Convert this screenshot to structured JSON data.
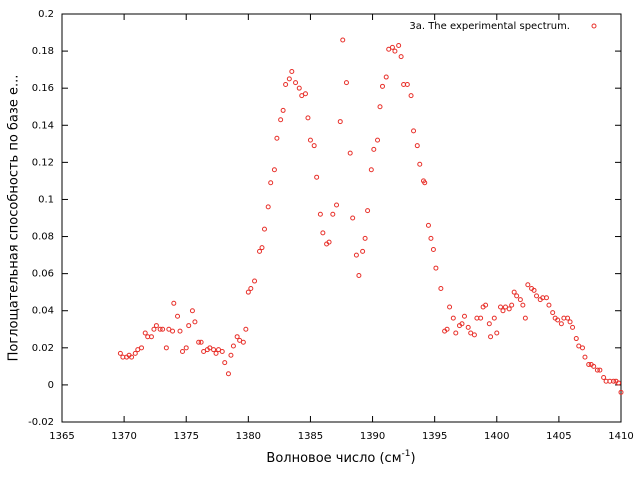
{
  "chart_data": {
    "type": "scatter",
    "xlabel": [
      "Волновое число (см",
      "-1",
      ")"
    ],
    "ylabel": "Поглощательная способность по базе e...",
    "xlim": [
      1365,
      1410
    ],
    "xticks": [
      1365,
      1370,
      1375,
      1380,
      1385,
      1390,
      1395,
      1400,
      1405,
      1410
    ],
    "ylim": [
      -0.02,
      0.2
    ],
    "yticks": [
      -0.02,
      0,
      0.02,
      0.04,
      0.06,
      0.08,
      0.1,
      0.12,
      0.14,
      0.16,
      0.18,
      0.2
    ],
    "legend": "top-right",
    "x": [
      1369.7,
      1369.9,
      1370.2,
      1370.4,
      1370.6,
      1370.9,
      1371.1,
      1371.4,
      1371.7,
      1371.9,
      1372.2,
      1372.4,
      1372.6,
      1372.9,
      1373.1,
      1373.4,
      1373.6,
      1373.9,
      1374.0,
      1374.3,
      1374.5,
      1374.7,
      1375.0,
      1375.2,
      1375.5,
      1375.7,
      1376.0,
      1376.2,
      1376.4,
      1376.7,
      1376.9,
      1377.2,
      1377.4,
      1377.6,
      1377.9,
      1378.1,
      1378.4,
      1378.6,
      1378.8,
      1379.1,
      1379.3,
      1379.6,
      1379.8,
      1380.0,
      1380.2,
      1380.5,
      1380.9,
      1381.1,
      1381.3,
      1381.6,
      1381.8,
      1382.1,
      1382.3,
      1382.6,
      1382.8,
      1383.0,
      1383.3,
      1383.5,
      1383.8,
      1384.1,
      1384.3,
      1384.6,
      1384.8,
      1385.0,
      1385.3,
      1385.5,
      1385.8,
      1386.0,
      1386.3,
      1386.5,
      1386.8,
      1387.1,
      1387.4,
      1387.6,
      1387.9,
      1388.2,
      1388.4,
      1388.7,
      1388.9,
      1389.2,
      1389.4,
      1389.6,
      1389.9,
      1390.1,
      1390.4,
      1390.6,
      1390.8,
      1391.1,
      1391.3,
      1391.6,
      1391.8,
      1392.1,
      1392.3,
      1392.5,
      1392.8,
      1393.1,
      1393.3,
      1393.6,
      1393.8,
      1394.1,
      1394.2,
      1394.5,
      1394.7,
      1394.9,
      1395.1,
      1395.5,
      1395.8,
      1396.0,
      1396.2,
      1396.5,
      1396.7,
      1397.0,
      1397.2,
      1397.4,
      1397.7,
      1397.9,
      1398.2,
      1398.4,
      1398.7,
      1398.9,
      1399.1,
      1399.4,
      1399.5,
      1399.8,
      1400.0,
      1400.3,
      1400.5,
      1400.7,
      1401.0,
      1401.2,
      1401.4,
      1401.6,
      1401.9,
      1402.1,
      1402.3,
      1402.5,
      1402.8,
      1403.0,
      1403.2,
      1403.5,
      1403.7,
      1404.0,
      1404.2,
      1404.5,
      1404.7,
      1404.9,
      1405.2,
      1405.4,
      1405.7,
      1405.9,
      1406.1,
      1406.4,
      1406.6,
      1406.9,
      1407.1,
      1407.4,
      1407.6,
      1407.8,
      1408.1,
      1408.3,
      1408.6,
      1408.8,
      1409.1,
      1409.4,
      1409.6,
      1409.8,
      1410.0
    ],
    "series": [
      {
        "name": "3a. The experimental spectrum.",
        "color": "#e8302a",
        "values": [
          0.017,
          0.015,
          0.015,
          0.016,
          0.015,
          0.017,
          0.019,
          0.02,
          0.028,
          0.026,
          0.026,
          0.03,
          0.032,
          0.03,
          0.03,
          0.02,
          0.03,
          0.029,
          0.044,
          0.037,
          0.029,
          0.018,
          0.02,
          0.032,
          0.04,
          0.034,
          0.023,
          0.023,
          0.018,
          0.019,
          0.02,
          0.019,
          0.017,
          0.019,
          0.018,
          0.012,
          0.006,
          0.016,
          0.021,
          0.026,
          0.024,
          0.023,
          0.03,
          0.05,
          0.052,
          0.056,
          0.072,
          0.074,
          0.084,
          0.096,
          0.109,
          0.116,
          0.133,
          0.143,
          0.148,
          0.162,
          0.165,
          0.169,
          0.163,
          0.16,
          0.156,
          0.157,
          0.144,
          0.132,
          0.129,
          0.112,
          0.092,
          0.082,
          0.076,
          0.077,
          0.092,
          0.097,
          0.142,
          0.186,
          0.163,
          0.125,
          0.09,
          0.07,
          0.059,
          0.072,
          0.079,
          0.094,
          0.116,
          0.127,
          0.132,
          0.15,
          0.161,
          0.166,
          0.181,
          0.182,
          0.18,
          0.183,
          0.177,
          0.162,
          0.162,
          0.156,
          0.137,
          0.129,
          0.119,
          0.11,
          0.109,
          0.086,
          0.079,
          0.073,
          0.063,
          0.052,
          0.029,
          0.03,
          0.042,
          0.036,
          0.028,
          0.032,
          0.033,
          0.037,
          0.031,
          0.028,
          0.027,
          0.036,
          0.036,
          0.042,
          0.043,
          0.033,
          0.026,
          0.036,
          0.028,
          0.042,
          0.04,
          0.042,
          0.041,
          0.043,
          0.05,
          0.048,
          0.046,
          0.043,
          0.036,
          0.054,
          0.052,
          0.051,
          0.048,
          0.046,
          0.047,
          0.047,
          0.043,
          0.039,
          0.036,
          0.035,
          0.033,
          0.036,
          0.036,
          0.034,
          0.031,
          0.025,
          0.021,
          0.02,
          0.015,
          0.011,
          0.011,
          0.01,
          0.008,
          0.008,
          0.004,
          0.002,
          0.002,
          0.002,
          0.002,
          0.001,
          -0.004
        ]
      }
    ]
  }
}
